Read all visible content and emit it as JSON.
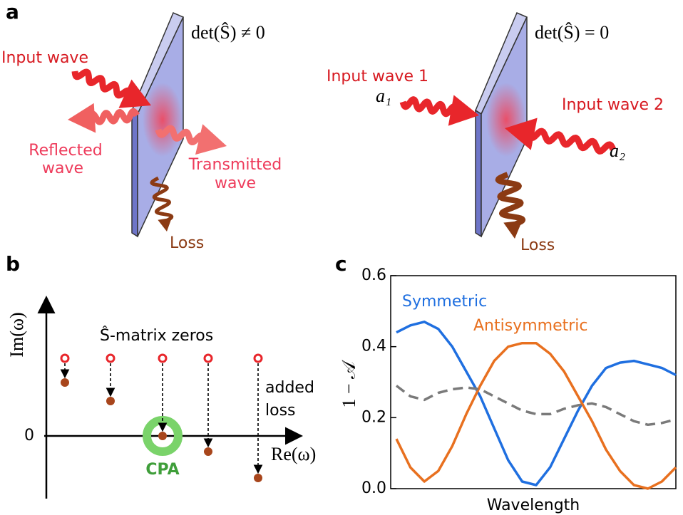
{
  "panel_a": {
    "label": "a",
    "left": {
      "condition": "det(Ŝ) ≠ 0",
      "input": "Input wave",
      "reflected": [
        "Reflected",
        "wave"
      ],
      "transmitted": [
        "Transmitted",
        "wave"
      ],
      "loss": "Loss"
    },
    "right": {
      "condition": "det(Ŝ) = 0",
      "input_1": "Input wave 1",
      "amplitude_1": "a₁",
      "input_2": "Input wave 2",
      "amplitude_2": "a₂",
      "loss": "Loss"
    }
  },
  "panel_b": {
    "label": "b",
    "y_axis_label": "Im(ω)",
    "x_axis_label": "Re(ω)",
    "origin_label": "0",
    "zeros_label": "Ŝ-matrix zeros",
    "added_loss": [
      "added",
      "loss"
    ],
    "cpa_label": "CPA"
  },
  "chart_data": {
    "type": "line",
    "label": "c",
    "ylabel": "1 − 𝒜",
    "xlabel": "Wavelength",
    "ylim": [
      0,
      0.6
    ],
    "yticks": [
      {
        "value": 0,
        "label": "0.0"
      },
      0.2,
      0.4,
      0.6
    ],
    "series": [
      {
        "name": "Symmetric",
        "color": "#1f6fe0",
        "values": [
          0.44,
          0.46,
          0.47,
          0.45,
          0.4,
          0.33,
          0.26,
          0.17,
          0.08,
          0.02,
          0.01,
          0.06,
          0.14,
          0.22,
          0.29,
          0.34,
          0.355,
          0.36,
          0.35,
          0.34,
          0.32
        ]
      },
      {
        "name": "Antisymmetric",
        "color": "#e8701f",
        "values": [
          0.14,
          0.06,
          0.02,
          0.05,
          0.12,
          0.21,
          0.29,
          0.36,
          0.4,
          0.41,
          0.41,
          0.38,
          0.33,
          0.26,
          0.19,
          0.11,
          0.05,
          0.01,
          0.0,
          0.02,
          0.06
        ]
      },
      {
        "color": "#7a7a7a",
        "dashed": true,
        "values": [
          0.29,
          0.26,
          0.25,
          0.27,
          0.28,
          0.285,
          0.28,
          0.26,
          0.24,
          0.22,
          0.21,
          0.21,
          0.225,
          0.235,
          0.24,
          0.23,
          0.21,
          0.19,
          0.18,
          0.185,
          0.195
        ]
      }
    ]
  }
}
